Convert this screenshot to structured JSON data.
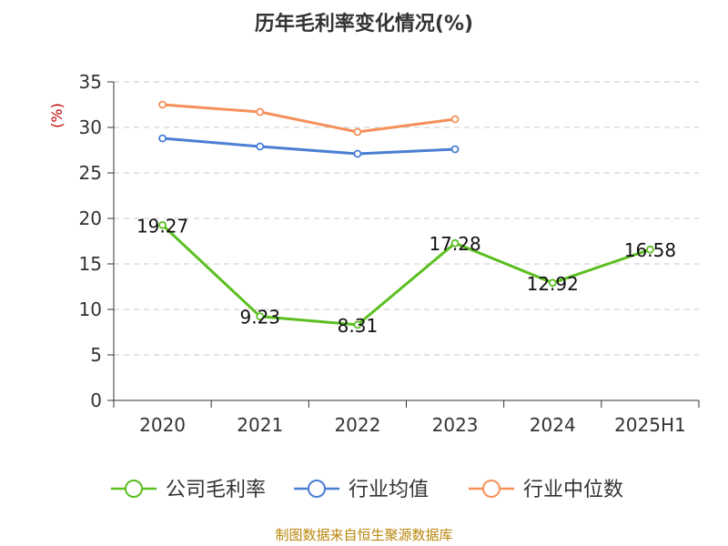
{
  "chart_data": {
    "type": "line",
    "title": "历年毛利率变化情况(%)",
    "ylabel": "(%)",
    "categories": [
      "2020",
      "2021",
      "2022",
      "2023",
      "2024",
      "2025H1"
    ],
    "ylim": [
      0,
      35
    ],
    "yticks": [
      "0",
      "5",
      "10",
      "15",
      "20",
      "25",
      "30",
      "35"
    ],
    "grid": true,
    "legend_position": "bottom",
    "series": [
      {
        "name": "公司毛利率",
        "color": "#5bbf21",
        "values": [
          19.27,
          9.23,
          8.31,
          17.28,
          12.92,
          16.58
        ],
        "labels": [
          "19.27",
          "9.23",
          "8.31",
          "17.28",
          "12.92",
          "16.58"
        ]
      },
      {
        "name": "行业均值",
        "color": "#4a7fd4",
        "values": [
          28.8,
          27.9,
          27.1,
          27.6,
          null,
          null
        ]
      },
      {
        "name": "行业中位数",
        "color": "#f5905a",
        "values": [
          32.5,
          31.7,
          29.5,
          30.9,
          null,
          null
        ]
      }
    ]
  },
  "source": "制图数据来自恒生聚源数据库"
}
